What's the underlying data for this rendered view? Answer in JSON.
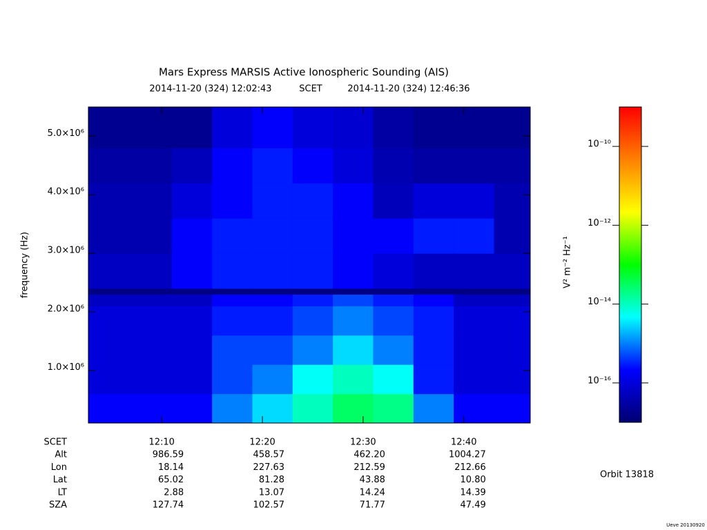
{
  "chart_data": {
    "type": "heatmap",
    "title": "Mars Express MARSIS Active Ionospheric Sounding (AIS)",
    "start_time": "2014-11-20 (324) 12:02:43",
    "time_label": "SCET",
    "end_time": "2014-11-20 (324) 12:46:36",
    "y_label": "frequency (Hz)",
    "xlim": [
      2.717,
      46.6
    ],
    "xticks": [
      {
        "value": 10,
        "label": "12:10"
      },
      {
        "value": 20,
        "label": "12:20"
      },
      {
        "value": 30,
        "label": "12:30"
      },
      {
        "value": 40,
        "label": "12:40"
      }
    ],
    "ylim": [
      100000,
      5500000
    ],
    "yticks": [
      {
        "value": 1000000,
        "label": "1.0×10⁶"
      },
      {
        "value": 2000000,
        "label": "2.0×10⁶"
      },
      {
        "value": 3000000,
        "label": "3.0×10⁶"
      },
      {
        "value": 4000000,
        "label": "4.0×10⁶"
      },
      {
        "value": 5000000,
        "label": "5.0×10⁶"
      }
    ],
    "x_edges": [
      2.717,
      7,
      11,
      15,
      19,
      23,
      27,
      31,
      35,
      39,
      43,
      46.6
    ],
    "y_edges": [
      100000,
      600000,
      1100000,
      1600000,
      2100000,
      2300000,
      2400000,
      3000000,
      3600000,
      4200000,
      4800000,
      5500000
    ],
    "values": [
      [
        2e-16,
        2e-16,
        2e-16,
        1e-15,
        3e-15,
        1e-14,
        3e-14,
        2e-14,
        1e-15,
        2e-16,
        2e-16
      ],
      [
        1e-16,
        1e-16,
        1e-16,
        5e-16,
        1e-15,
        5e-15,
        1e-14,
        5e-15,
        3e-16,
        1e-16,
        1e-16
      ],
      [
        1e-16,
        1e-16,
        1e-16,
        5e-16,
        5e-16,
        1e-15,
        3e-15,
        1e-15,
        3e-16,
        1e-16,
        1e-16
      ],
      [
        1e-16,
        1e-16,
        1e-16,
        3e-16,
        3e-16,
        5e-16,
        1e-15,
        5e-16,
        3e-16,
        1e-16,
        1e-16
      ],
      [
        6e-17,
        6e-17,
        6e-17,
        2e-16,
        2e-16,
        3e-16,
        5e-16,
        3e-16,
        2e-16,
        6e-17,
        6e-17
      ],
      [
        1.5e-17,
        1.5e-17,
        1.5e-17,
        1.5e-17,
        1.5e-17,
        1.5e-17,
        1.5e-17,
        1.5e-17,
        1.5e-17,
        1.5e-17,
        1.5e-17
      ],
      [
        6e-17,
        6e-17,
        2e-16,
        3e-16,
        3e-16,
        3e-16,
        2e-16,
        1e-16,
        6e-17,
        6e-17,
        6e-17
      ],
      [
        4e-17,
        4e-17,
        2e-16,
        3e-16,
        3e-16,
        3e-16,
        2e-16,
        2e-16,
        3e-16,
        3e-16,
        4e-17
      ],
      [
        4e-17,
        4e-17,
        1e-16,
        2e-16,
        3e-16,
        3e-16,
        2e-16,
        5e-17,
        1e-16,
        1e-16,
        4e-17
      ],
      [
        3e-17,
        3e-17,
        5e-17,
        2e-16,
        3e-16,
        2e-16,
        1e-16,
        4e-17,
        3e-17,
        3e-17,
        3e-17
      ],
      [
        2e-17,
        2e-17,
        2e-17,
        1e-16,
        2e-16,
        1e-16,
        8e-17,
        3e-17,
        2e-17,
        2e-17,
        2e-17
      ]
    ],
    "colormap": [
      "#000070",
      "#0000ff",
      "#00ffff",
      "#00ff00",
      "#ffff00",
      "#ff8000",
      "#ff0000"
    ],
    "colorbar": {
      "label": "V² m⁻² Hz⁻¹",
      "log_scale": true,
      "lim": [
        1e-17,
        1e-09
      ],
      "ticks": [
        {
          "value": 1e-16,
          "label": "10⁻¹⁶"
        },
        {
          "value": 1e-14,
          "label": "10⁻¹⁴"
        },
        {
          "value": 1e-12,
          "label": "10⁻¹²"
        },
        {
          "value": 1e-10,
          "label": "10⁻¹⁰"
        }
      ]
    },
    "ephemeris": {
      "labels": [
        "SCET",
        "Alt",
        "Lon",
        "Lat",
        "LT",
        "SZA"
      ],
      "rows": [
        null,
        [
          "986.59",
          "458.57",
          "462.20",
          "1004.27"
        ],
        [
          "18.14",
          "227.63",
          "212.59",
          "212.66"
        ],
        [
          "65.02",
          "81.28",
          "43.88",
          "10.80"
        ],
        [
          "2.88",
          "13.07",
          "14.24",
          "14.39"
        ],
        [
          "127.74",
          "102.57",
          "71.77",
          "47.49"
        ]
      ]
    },
    "orbit": "Orbit 13818",
    "footer": "Ueve 20130920"
  }
}
